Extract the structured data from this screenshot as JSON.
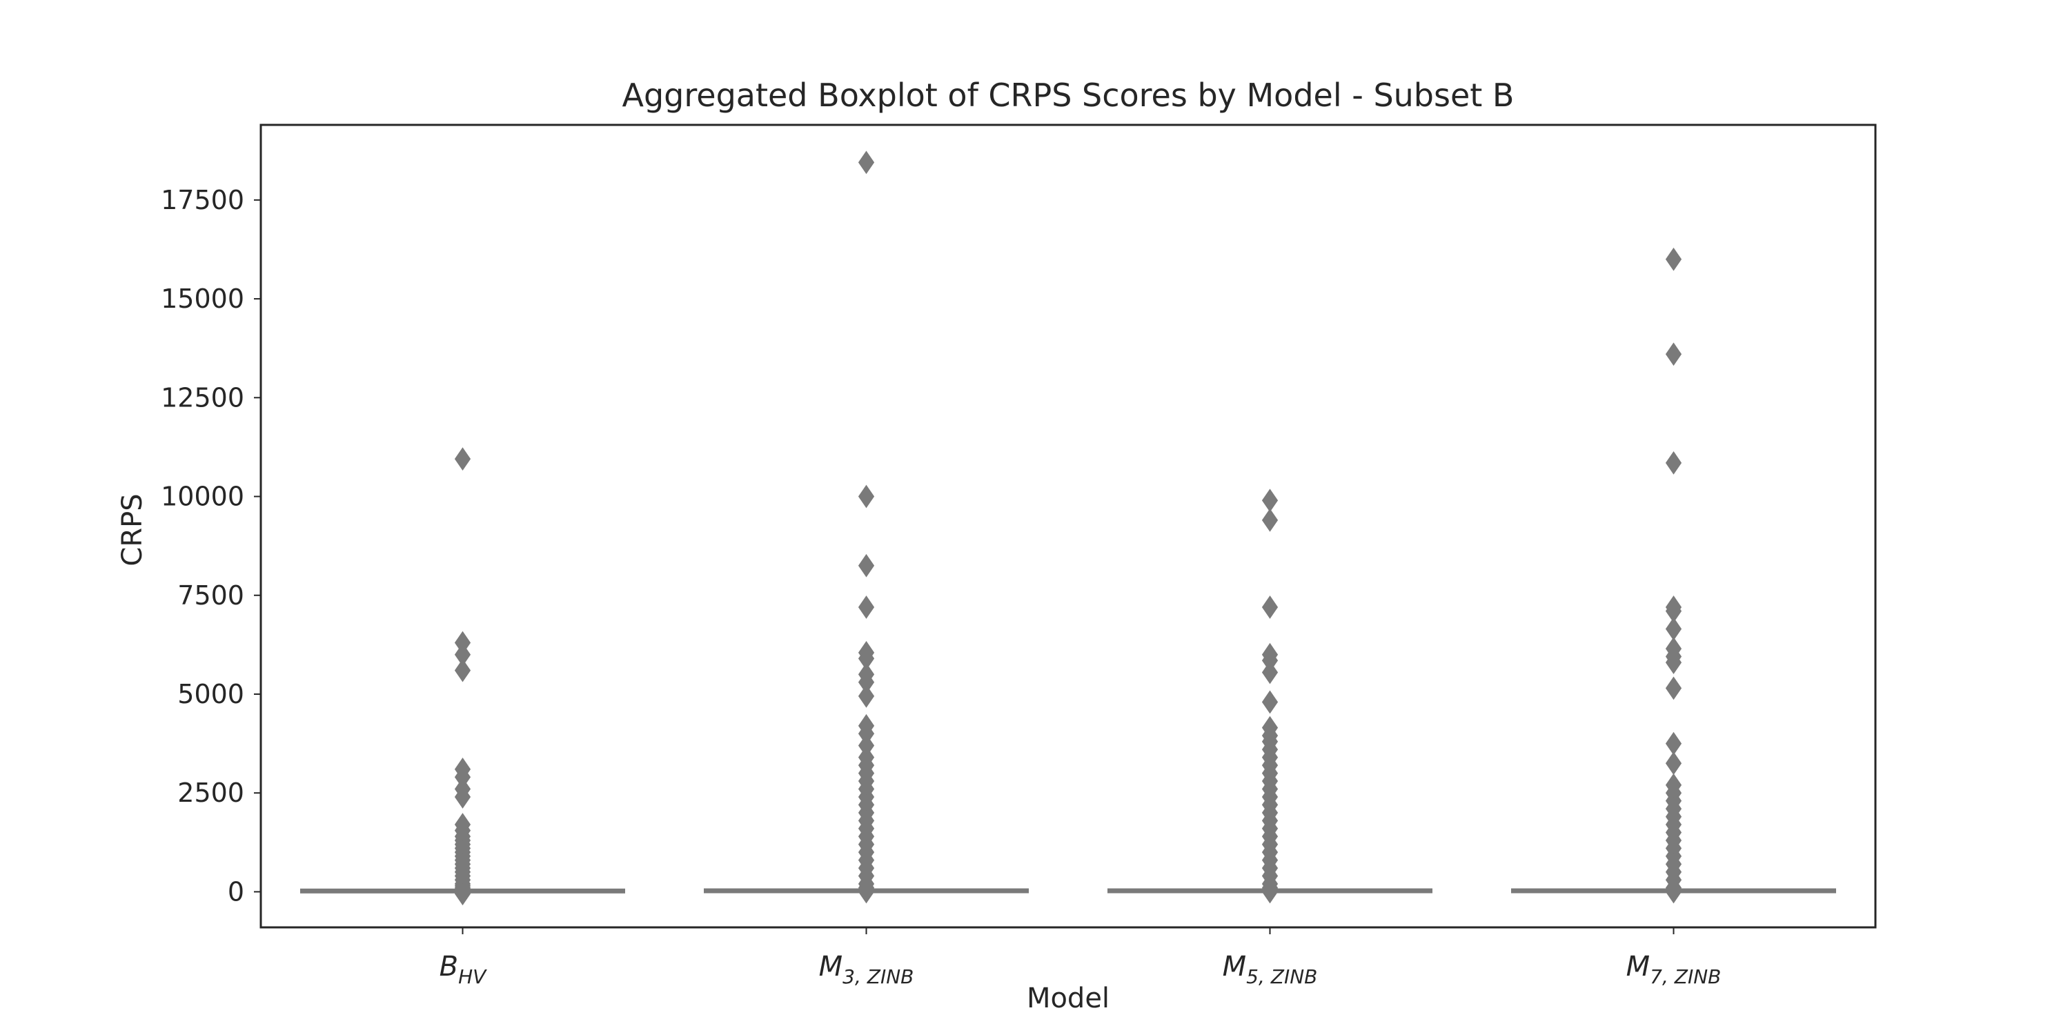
{
  "chart_data": {
    "type": "boxplot",
    "title": "Aggregated Boxplot of CRPS Scores by Model - Subset B",
    "xlabel": "Model",
    "ylabel": "CRPS",
    "ylim": [
      -900,
      19400
    ],
    "yticks": [
      0,
      2500,
      5000,
      7500,
      10000,
      12500,
      15000,
      17500
    ],
    "grid": false,
    "box_color": "#7a7a7a",
    "categories": [
      {
        "base": "B",
        "sub": "HV"
      },
      {
        "base": "M",
        "sub": "3, ZINB"
      },
      {
        "base": "M",
        "sub": "5, ZINB"
      },
      {
        "base": "M",
        "sub": "7, ZINB"
      }
    ],
    "series": [
      {
        "q1": 0,
        "median": 5,
        "q3": 20,
        "whisker_low": 0,
        "whisker_high": 50,
        "outliers": [
          10950,
          6300,
          6000,
          5600,
          3100,
          2900,
          2600,
          2400,
          1700,
          1550,
          1400,
          1300,
          1200,
          1100,
          1000,
          900,
          800,
          700,
          600,
          500,
          400,
          300,
          200,
          150,
          100,
          70,
          -50
        ]
      },
      {
        "q1": 0,
        "median": 5,
        "q3": 25,
        "whisker_low": 0,
        "whisker_high": 60,
        "outliers": [
          18450,
          10000,
          8250,
          7200,
          6050,
          5900,
          5500,
          5300,
          4950,
          4200,
          4000,
          3700,
          3400,
          3200,
          3000,
          2800,
          2600,
          2400,
          2200,
          2000,
          1800,
          1600,
          1400,
          1200,
          1000,
          800,
          600,
          400,
          200,
          100,
          0
        ]
      },
      {
        "q1": 0,
        "median": 5,
        "q3": 25,
        "whisker_low": 0,
        "whisker_high": 60,
        "outliers": [
          9900,
          9400,
          7200,
          6000,
          5850,
          5550,
          4800,
          4150,
          3950,
          3800,
          3600,
          3400,
          3200,
          3000,
          2800,
          2600,
          2400,
          2200,
          2000,
          1800,
          1600,
          1400,
          1200,
          1000,
          800,
          600,
          400,
          200,
          100,
          0
        ]
      },
      {
        "q1": 0,
        "median": 5,
        "q3": 25,
        "whisker_low": 0,
        "whisker_high": 60,
        "outliers": [
          16000,
          13600,
          10850,
          7200,
          7100,
          6650,
          6150,
          5950,
          5800,
          5150,
          3750,
          3250,
          2700,
          2500,
          2300,
          2100,
          1900,
          1700,
          1500,
          1300,
          1100,
          900,
          700,
          500,
          300,
          100,
          0
        ]
      }
    ]
  }
}
